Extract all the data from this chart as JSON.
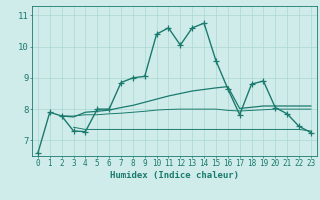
{
  "series": [
    {
      "x": [
        0,
        1,
        2,
        3,
        4,
        5,
        6,
        7,
        8,
        9,
        10,
        11,
        12,
        13,
        14,
        15,
        16,
        17,
        18,
        19,
        20,
        21,
        22,
        23
      ],
      "y": [
        6.6,
        7.9,
        7.78,
        7.3,
        7.28,
        8.0,
        8.0,
        8.85,
        9.0,
        9.05,
        10.4,
        10.6,
        10.05,
        10.6,
        10.75,
        9.55,
        8.65,
        7.82,
        8.8,
        8.9,
        8.05,
        7.85,
        7.45,
        7.25
      ],
      "color": "#1a7a6e",
      "linewidth": 1.0,
      "marker": "+",
      "markersize": 4
    },
    {
      "x": [
        2,
        3,
        4,
        5,
        6,
        7,
        8,
        9,
        10,
        11,
        12,
        13,
        14,
        15,
        16,
        17,
        18,
        19,
        20,
        21,
        22,
        23
      ],
      "y": [
        7.78,
        7.75,
        7.9,
        7.93,
        7.97,
        8.05,
        8.12,
        8.22,
        8.32,
        8.42,
        8.5,
        8.58,
        8.63,
        8.68,
        8.72,
        8.02,
        8.06,
        8.1,
        8.1,
        8.1,
        8.1,
        8.1
      ],
      "color": "#1a7a6e",
      "linewidth": 0.9,
      "marker": null,
      "markersize": 0
    },
    {
      "x": [
        2,
        3,
        4,
        5,
        6,
        7,
        8,
        9,
        10,
        11,
        12,
        13,
        14,
        15,
        16,
        17,
        18,
        19,
        20,
        21,
        22,
        23
      ],
      "y": [
        7.78,
        7.78,
        7.82,
        7.82,
        7.85,
        7.87,
        7.9,
        7.93,
        7.97,
        7.99,
        8.0,
        8.0,
        8.0,
        8.0,
        7.96,
        7.94,
        7.96,
        7.98,
        8.0,
        8.0,
        8.0,
        8.0
      ],
      "color": "#1a7a6e",
      "linewidth": 0.7,
      "marker": null,
      "markersize": 0
    },
    {
      "x": [
        3,
        4,
        5,
        6,
        7,
        8,
        9,
        10,
        11,
        12,
        13,
        14,
        15,
        16,
        17,
        18,
        19,
        20,
        21,
        22,
        23
      ],
      "y": [
        7.42,
        7.35,
        7.35,
        7.35,
        7.35,
        7.35,
        7.35,
        7.35,
        7.35,
        7.35,
        7.35,
        7.35,
        7.35,
        7.35,
        7.35,
        7.35,
        7.35,
        7.35,
        7.35,
        7.35,
        7.3
      ],
      "color": "#1a7a6e",
      "linewidth": 0.7,
      "marker": null,
      "markersize": 0
    }
  ],
  "xlabel": "Humidex (Indice chaleur)",
  "xlim": [
    -0.5,
    23.5
  ],
  "ylim": [
    6.5,
    11.3
  ],
  "yticks": [
    7,
    8,
    9,
    10,
    11
  ],
  "xticks": [
    0,
    1,
    2,
    3,
    4,
    5,
    6,
    7,
    8,
    9,
    10,
    11,
    12,
    13,
    14,
    15,
    16,
    17,
    18,
    19,
    20,
    21,
    22,
    23
  ],
  "grid_color": "#a8d8d0",
  "bg_color": "#d0ecea",
  "axis_color": "#1a7a6e",
  "tick_color": "#1a7a6e",
  "label_color": "#1a7a6e",
  "xlabel_fontsize": 6.5,
  "tick_fontsize": 5.5,
  "ytick_fontsize": 6.5
}
